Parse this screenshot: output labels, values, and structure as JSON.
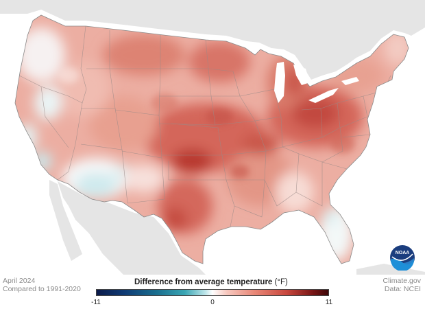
{
  "caption": {
    "month": "April 2024",
    "baseline": "Compared to 1991-2020"
  },
  "legend": {
    "title": "Difference from average temperature",
    "unit": "(°F)",
    "min_label": "-11",
    "mid_label": "0",
    "max_label": "11",
    "colors": [
      "#0b1a4a",
      "#1a6f8f",
      "#ffffff",
      "#e98878",
      "#3d0708"
    ]
  },
  "credits": {
    "source": "Climate.gov",
    "data": "Data: NCEI"
  },
  "logo": {
    "text": "NOAA"
  },
  "map": {
    "region": "Contiguous United States",
    "land_color": "#e3e3e3",
    "water_color": "#ffffff"
  }
}
